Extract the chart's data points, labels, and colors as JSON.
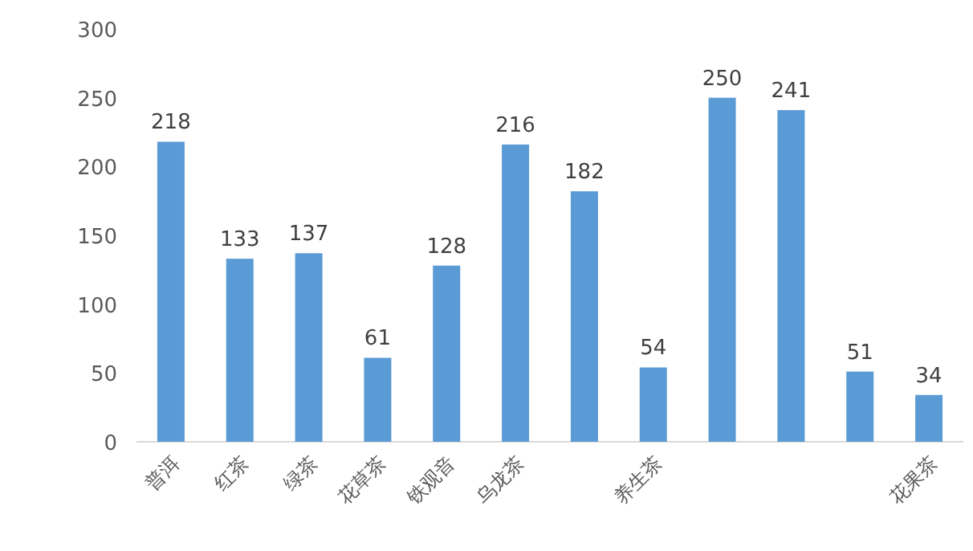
{
  "chart_data": {
    "type": "bar",
    "categories": [
      "普洱",
      "红茶",
      "绿茶",
      "花草茶",
      "铁观音",
      "乌龙茶",
      null,
      "养生茶",
      null,
      null,
      null,
      "花果茶"
    ],
    "values": [
      218,
      133,
      137,
      61,
      128,
      216,
      182,
      54,
      250,
      241,
      51,
      34
    ],
    "color": "#5b9bd5",
    "ylim": [
      0,
      300
    ],
    "yticks": [
      0,
      50,
      100,
      150,
      200,
      250,
      300
    ],
    "data_labels": true,
    "grid": false
  }
}
